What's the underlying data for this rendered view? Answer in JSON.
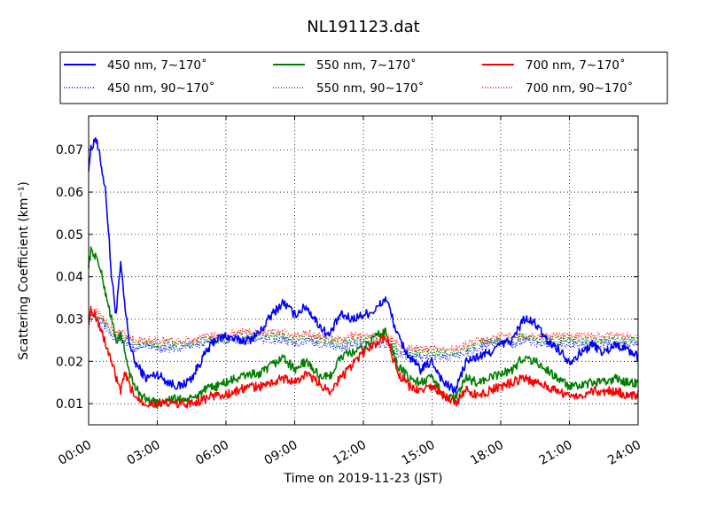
{
  "chart_data": {
    "type": "line",
    "title": "NL191123.dat",
    "xlabel": "Time on 2019-11-23 (JST)",
    "ylabel": "Scattering Coefficient (km⁻¹)",
    "xlim": [
      "00:00",
      "24:00"
    ],
    "ylim": [
      0.005,
      0.078
    ],
    "x_ticks": [
      "00:00",
      "03:00",
      "06:00",
      "09:00",
      "12:00",
      "15:00",
      "18:00",
      "21:00",
      "24:00"
    ],
    "y_ticks": [
      "0.01",
      "0.02",
      "0.03",
      "0.04",
      "0.05",
      "0.06",
      "0.07"
    ],
    "grid": true,
    "legend_position": "top, above plot",
    "x_hours": [
      0,
      0.1,
      0.3,
      0.5,
      0.75,
      1,
      1.2,
      1.4,
      1.6,
      1.8,
      2,
      2.5,
      3,
      3.5,
      4,
      4.5,
      5,
      5.5,
      6,
      6.5,
      7,
      7.5,
      8,
      8.5,
      9,
      9.5,
      10,
      10.5,
      11,
      11.5,
      12,
      12.5,
      13,
      13.5,
      14,
      14.5,
      15,
      15.5,
      16,
      16.5,
      17,
      17.5,
      18,
      18.5,
      19,
      19.5,
      20,
      20.5,
      21,
      21.5,
      22,
      22.5,
      23,
      23.5,
      24
    ],
    "series": [
      {
        "name": "450 nm, 7∼170˚",
        "color": "#0000ff",
        "style": "solid",
        "values": [
          0.066,
          0.07,
          0.073,
          0.068,
          0.06,
          0.04,
          0.031,
          0.043,
          0.032,
          0.024,
          0.02,
          0.016,
          0.017,
          0.015,
          0.014,
          0.016,
          0.021,
          0.025,
          0.026,
          0.025,
          0.025,
          0.027,
          0.031,
          0.034,
          0.031,
          0.033,
          0.029,
          0.026,
          0.031,
          0.03,
          0.031,
          0.032,
          0.035,
          0.026,
          0.021,
          0.018,
          0.02,
          0.015,
          0.013,
          0.02,
          0.021,
          0.022,
          0.024,
          0.025,
          0.03,
          0.029,
          0.025,
          0.023,
          0.02,
          0.022,
          0.024,
          0.022,
          0.024,
          0.023,
          0.021
        ]
      },
      {
        "name": "450 nm, 90∼170˚",
        "color": "#0000ff",
        "style": "dotted",
        "values": [
          0.029,
          0.03,
          0.031,
          0.03,
          0.028,
          0.026,
          0.025,
          0.025,
          0.024,
          0.024,
          0.023,
          0.024,
          0.023,
          0.023,
          0.023,
          0.024,
          0.024,
          0.025,
          0.025,
          0.025,
          0.025,
          0.025,
          0.025,
          0.025,
          0.024,
          0.025,
          0.024,
          0.024,
          0.023,
          0.024,
          0.024,
          0.024,
          0.024,
          0.022,
          0.021,
          0.021,
          0.021,
          0.021,
          0.021,
          0.022,
          0.023,
          0.024,
          0.025,
          0.024,
          0.025,
          0.024,
          0.024,
          0.024,
          0.024,
          0.024,
          0.024,
          0.024,
          0.024,
          0.024,
          0.024
        ]
      },
      {
        "name": "550 nm, 7∼170˚",
        "color": "#008000",
        "style": "solid",
        "values": [
          0.043,
          0.046,
          0.045,
          0.042,
          0.036,
          0.03,
          0.025,
          0.026,
          0.022,
          0.017,
          0.014,
          0.011,
          0.01,
          0.011,
          0.011,
          0.011,
          0.013,
          0.014,
          0.015,
          0.016,
          0.017,
          0.017,
          0.019,
          0.021,
          0.018,
          0.02,
          0.017,
          0.016,
          0.021,
          0.022,
          0.023,
          0.026,
          0.027,
          0.019,
          0.016,
          0.015,
          0.016,
          0.012,
          0.011,
          0.016,
          0.015,
          0.016,
          0.017,
          0.018,
          0.021,
          0.02,
          0.018,
          0.016,
          0.014,
          0.014,
          0.015,
          0.015,
          0.016,
          0.015,
          0.015
        ]
      },
      {
        "name": "550 nm, 90∼170˚",
        "color": "#008000",
        "style": "dotted",
        "values": [
          0.03,
          0.031,
          0.031,
          0.03,
          0.029,
          0.027,
          0.026,
          0.026,
          0.025,
          0.025,
          0.024,
          0.024,
          0.024,
          0.024,
          0.024,
          0.024,
          0.025,
          0.025,
          0.025,
          0.026,
          0.026,
          0.026,
          0.026,
          0.026,
          0.025,
          0.026,
          0.025,
          0.025,
          0.024,
          0.025,
          0.025,
          0.025,
          0.025,
          0.023,
          0.022,
          0.022,
          0.022,
          0.022,
          0.022,
          0.023,
          0.024,
          0.025,
          0.025,
          0.025,
          0.026,
          0.025,
          0.025,
          0.025,
          0.025,
          0.025,
          0.025,
          0.025,
          0.025,
          0.025,
          0.025
        ]
      },
      {
        "name": "700 nm, 7∼170˚",
        "color": "#ff0000",
        "style": "solid",
        "values": [
          0.03,
          0.032,
          0.031,
          0.028,
          0.024,
          0.02,
          0.016,
          0.013,
          0.017,
          0.014,
          0.012,
          0.01,
          0.01,
          0.01,
          0.01,
          0.01,
          0.011,
          0.012,
          0.012,
          0.013,
          0.014,
          0.014,
          0.015,
          0.016,
          0.015,
          0.017,
          0.015,
          0.013,
          0.016,
          0.019,
          0.022,
          0.024,
          0.026,
          0.017,
          0.014,
          0.013,
          0.014,
          0.012,
          0.01,
          0.013,
          0.012,
          0.013,
          0.014,
          0.015,
          0.016,
          0.015,
          0.014,
          0.013,
          0.012,
          0.012,
          0.013,
          0.013,
          0.013,
          0.012,
          0.012
        ]
      },
      {
        "name": "700 nm, 90∼170˚",
        "color": "#ff0000",
        "style": "dotted",
        "values": [
          0.029,
          0.031,
          0.032,
          0.031,
          0.029,
          0.028,
          0.027,
          0.027,
          0.026,
          0.026,
          0.025,
          0.025,
          0.025,
          0.025,
          0.025,
          0.025,
          0.026,
          0.026,
          0.026,
          0.027,
          0.027,
          0.027,
          0.027,
          0.027,
          0.026,
          0.027,
          0.026,
          0.026,
          0.025,
          0.026,
          0.026,
          0.026,
          0.026,
          0.024,
          0.023,
          0.023,
          0.023,
          0.023,
          0.023,
          0.024,
          0.025,
          0.025,
          0.026,
          0.026,
          0.026,
          0.026,
          0.026,
          0.026,
          0.026,
          0.026,
          0.026,
          0.026,
          0.026,
          0.026,
          0.026
        ]
      }
    ]
  }
}
